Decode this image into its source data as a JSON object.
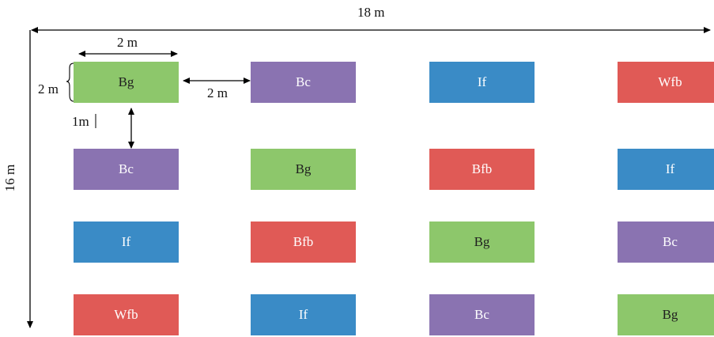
{
  "dimensions": {
    "field_width": "18 m",
    "field_depth": "16 m",
    "plot_width": "2 m",
    "plot_depth": "2 m",
    "horizontal_gap": "2 m",
    "vertical_gap": "1m"
  },
  "colors": {
    "Bg": "#8dc76b",
    "Bc": "#8a73b1",
    "If": "#3a8bc6",
    "Wfb": "#e05a56",
    "Bfb": "#e05a56"
  },
  "grid": [
    [
      "Bg",
      "Bc",
      "If",
      "Wfb"
    ],
    [
      "Bc",
      "Bg",
      "Bfb",
      "If"
    ],
    [
      "If",
      "Bfb",
      "Bg",
      "Bc"
    ],
    [
      "Wfb",
      "If",
      "Bc",
      "Bg"
    ]
  ]
}
